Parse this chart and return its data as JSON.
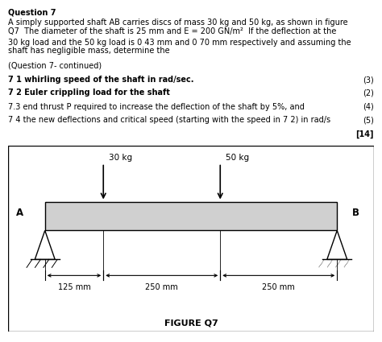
{
  "title": "Question 7",
  "para1_line1": "A simply supported shaft AB carries discs of mass 30 kg and 50 kg, as shown in figure",
  "para1_line2": "Q7  The diameter of the shaft is 25 mm and E = 200 GN/m²  If the deflection at the",
  "para2_line1": "30 kg load and the 50 kg load is 0 43 mm and 0 70 mm respectively and assuming the",
  "para2_line2": "shaft has negligible mass, determine the",
  "q_continued": "(Question 7- continued)",
  "q71": "7 1 whirling speed of the shaft in rad/sec.",
  "q71_marks": "(3)",
  "q72": "7 2 Euler crippling load for the shaft",
  "q72_marks": "(2)",
  "q73": "7.3 end thrust P required to increase the deflection of the shaft by 5%, and",
  "q73_marks": "(4)",
  "q74": "7 4 the new deflections and critical speed (starting with the speed in 7 2) in rad/s",
  "q74_marks": "(5)",
  "total_marks": "[14]",
  "fig_label": "FIGURE Q7",
  "load1_label": "30 kg",
  "load2_label": "50 kg",
  "label_A": "A",
  "label_B": "B",
  "dim1": "125 mm",
  "dim2": "250 mm",
  "dim3": "250 mm",
  "background": "#ffffff",
  "text_color": "#000000",
  "shaft_color": "#d0d0d0"
}
